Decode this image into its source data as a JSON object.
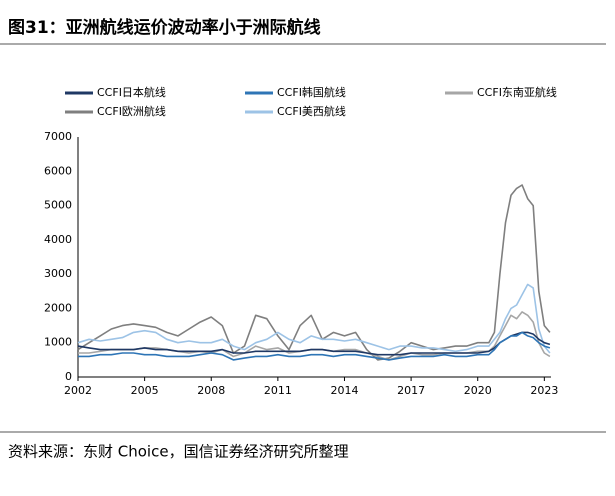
{
  "chart_data": {
    "type": "line",
    "title": "图31：亚洲航线运价波动率小于洲际航线",
    "source": "资料来源：东财 Choice，国信证券经济研究所整理",
    "x": [
      2002,
      2002.5,
      2003,
      2003.5,
      2004,
      2004.5,
      2005,
      2005.5,
      2006,
      2006.5,
      2007,
      2007.5,
      2008,
      2008.5,
      2009,
      2009.5,
      2010,
      2010.5,
      2011,
      2011.5,
      2012,
      2012.5,
      2013,
      2013.5,
      2014,
      2014.5,
      2015,
      2015.5,
      2016,
      2016.5,
      2017,
      2017.5,
      2018,
      2018.5,
      2019,
      2019.5,
      2020,
      2020.5,
      2020.75,
      2021,
      2021.25,
      2021.5,
      2021.75,
      2022,
      2022.25,
      2022.5,
      2022.75,
      2023,
      2023.25
    ],
    "series": [
      {
        "name": "CCFI欧洲航线",
        "color": "#7f7f7f",
        "values": [
          800,
          1000,
          1200,
          1400,
          1500,
          1550,
          1500,
          1450,
          1300,
          1200,
          1400,
          1600,
          1750,
          1500,
          700,
          900,
          1800,
          1700,
          1200,
          800,
          1500,
          1800,
          1100,
          1300,
          1200,
          1300,
          800,
          500,
          550,
          750,
          1000,
          900,
          800,
          850,
          900,
          900,
          1000,
          1000,
          1300,
          3000,
          4500,
          5300,
          5500,
          5600,
          5200,
          5000,
          2500,
          1500,
          1300
        ]
      },
      {
        "name": "CCFI美西航线",
        "color": "#9dc3e6",
        "values": [
          1000,
          1100,
          1050,
          1100,
          1150,
          1300,
          1350,
          1300,
          1100,
          1000,
          1050,
          1000,
          1000,
          1100,
          900,
          800,
          1000,
          1100,
          1300,
          1100,
          1000,
          1200,
          1100,
          1100,
          1050,
          1100,
          1000,
          900,
          800,
          900,
          900,
          850,
          850,
          800,
          750,
          800,
          900,
          900,
          1100,
          1300,
          1700,
          2000,
          2100,
          2400,
          2700,
          2600,
          1400,
          900,
          700
        ]
      },
      {
        "name": "CCFI东南亚航线",
        "color": "#a6a6a6",
        "values": [
          700,
          700,
          750,
          800,
          800,
          800,
          850,
          850,
          800,
          750,
          700,
          750,
          700,
          800,
          600,
          700,
          900,
          800,
          850,
          700,
          750,
          800,
          800,
          750,
          800,
          800,
          700,
          600,
          500,
          600,
          700,
          650,
          650,
          700,
          700,
          700,
          750,
          750,
          900,
          1200,
          1500,
          1800,
          1700,
          1900,
          1800,
          1600,
          1000,
          700,
          600
        ]
      },
      {
        "name": "CCFI日本航线",
        "color": "#1f3864",
        "values": [
          900,
          850,
          800,
          800,
          800,
          800,
          850,
          800,
          800,
          750,
          750,
          750,
          750,
          800,
          700,
          700,
          750,
          750,
          750,
          750,
          750,
          800,
          800,
          750,
          750,
          750,
          700,
          650,
          650,
          650,
          700,
          700,
          700,
          700,
          700,
          700,
          700,
          750,
          850,
          1000,
          1100,
          1200,
          1250,
          1300,
          1300,
          1250,
          1100,
          1000,
          950
        ]
      },
      {
        "name": "CCFI韩国航线",
        "color": "#2e75b6",
        "values": [
          600,
          600,
          650,
          650,
          700,
          700,
          650,
          650,
          600,
          600,
          600,
          650,
          700,
          650,
          500,
          550,
          600,
          600,
          650,
          600,
          600,
          650,
          650,
          600,
          650,
          650,
          600,
          550,
          500,
          550,
          600,
          600,
          600,
          650,
          600,
          600,
          650,
          650,
          800,
          1000,
          1100,
          1200,
          1200,
          1300,
          1200,
          1150,
          1000,
          900,
          850
        ]
      }
    ],
    "xlim": [
      2002,
      2023.3
    ],
    "xticks": [
      2002,
      2005,
      2008,
      2011,
      2014,
      2017,
      2020,
      2023
    ],
    "ylim": [
      0,
      7000
    ],
    "yticks": [
      0,
      1000,
      2000,
      3000,
      4000,
      5000,
      6000,
      7000
    ]
  }
}
